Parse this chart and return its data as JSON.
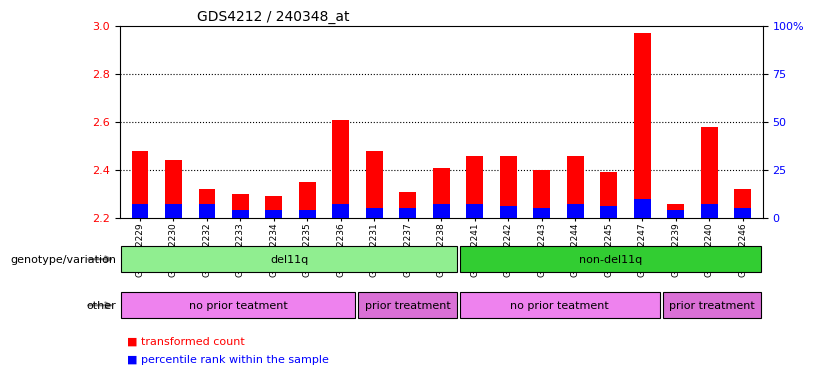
{
  "title": "GDS4212 / 240348_at",
  "samples": [
    "GSM652229",
    "GSM652230",
    "GSM652232",
    "GSM652233",
    "GSM652234",
    "GSM652235",
    "GSM652236",
    "GSM652231",
    "GSM652237",
    "GSM652238",
    "GSM652241",
    "GSM652242",
    "GSM652243",
    "GSM652244",
    "GSM652245",
    "GSM652247",
    "GSM652239",
    "GSM652240",
    "GSM652246"
  ],
  "red_values": [
    2.48,
    2.44,
    2.32,
    2.3,
    2.29,
    2.35,
    2.61,
    2.48,
    2.31,
    2.41,
    2.46,
    2.46,
    2.4,
    2.46,
    2.39,
    2.97,
    2.26,
    2.58,
    2.32
  ],
  "blue_values": [
    7,
    7,
    7,
    4,
    4,
    4,
    7,
    5,
    5,
    7,
    7,
    6,
    5,
    7,
    6,
    10,
    4,
    7,
    5
  ],
  "ylim_left": [
    2.2,
    3.0
  ],
  "ylim_right": [
    0,
    100
  ],
  "right_ticks": [
    0,
    25,
    50,
    75,
    100
  ],
  "right_tick_labels": [
    "0",
    "25",
    "50",
    "75",
    "100%"
  ],
  "left_ticks": [
    2.2,
    2.4,
    2.6,
    2.8,
    3.0
  ],
  "dotted_lines": [
    2.4,
    2.6,
    2.8
  ],
  "bar_width": 0.5,
  "genotype_groups": [
    {
      "label": "del11q",
      "start": 0,
      "end": 10,
      "color": "#90EE90"
    },
    {
      "label": "non-del11q",
      "start": 10,
      "end": 19,
      "color": "#32CD32"
    }
  ],
  "treatment_groups": [
    {
      "label": "no prior teatment",
      "start": 0,
      "end": 7,
      "color": "#EE82EE"
    },
    {
      "label": "prior treatment",
      "start": 7,
      "end": 10,
      "color": "#DA70D6"
    },
    {
      "label": "no prior teatment",
      "start": 10,
      "end": 16,
      "color": "#EE82EE"
    },
    {
      "label": "prior treatment",
      "start": 16,
      "end": 19,
      "color": "#DA70D6"
    }
  ],
  "legend_items": [
    {
      "label": "transformed count",
      "color": "red"
    },
    {
      "label": "percentile rank within the sample",
      "color": "blue"
    }
  ],
  "genotype_label": "genotype/variation",
  "other_label": "other"
}
